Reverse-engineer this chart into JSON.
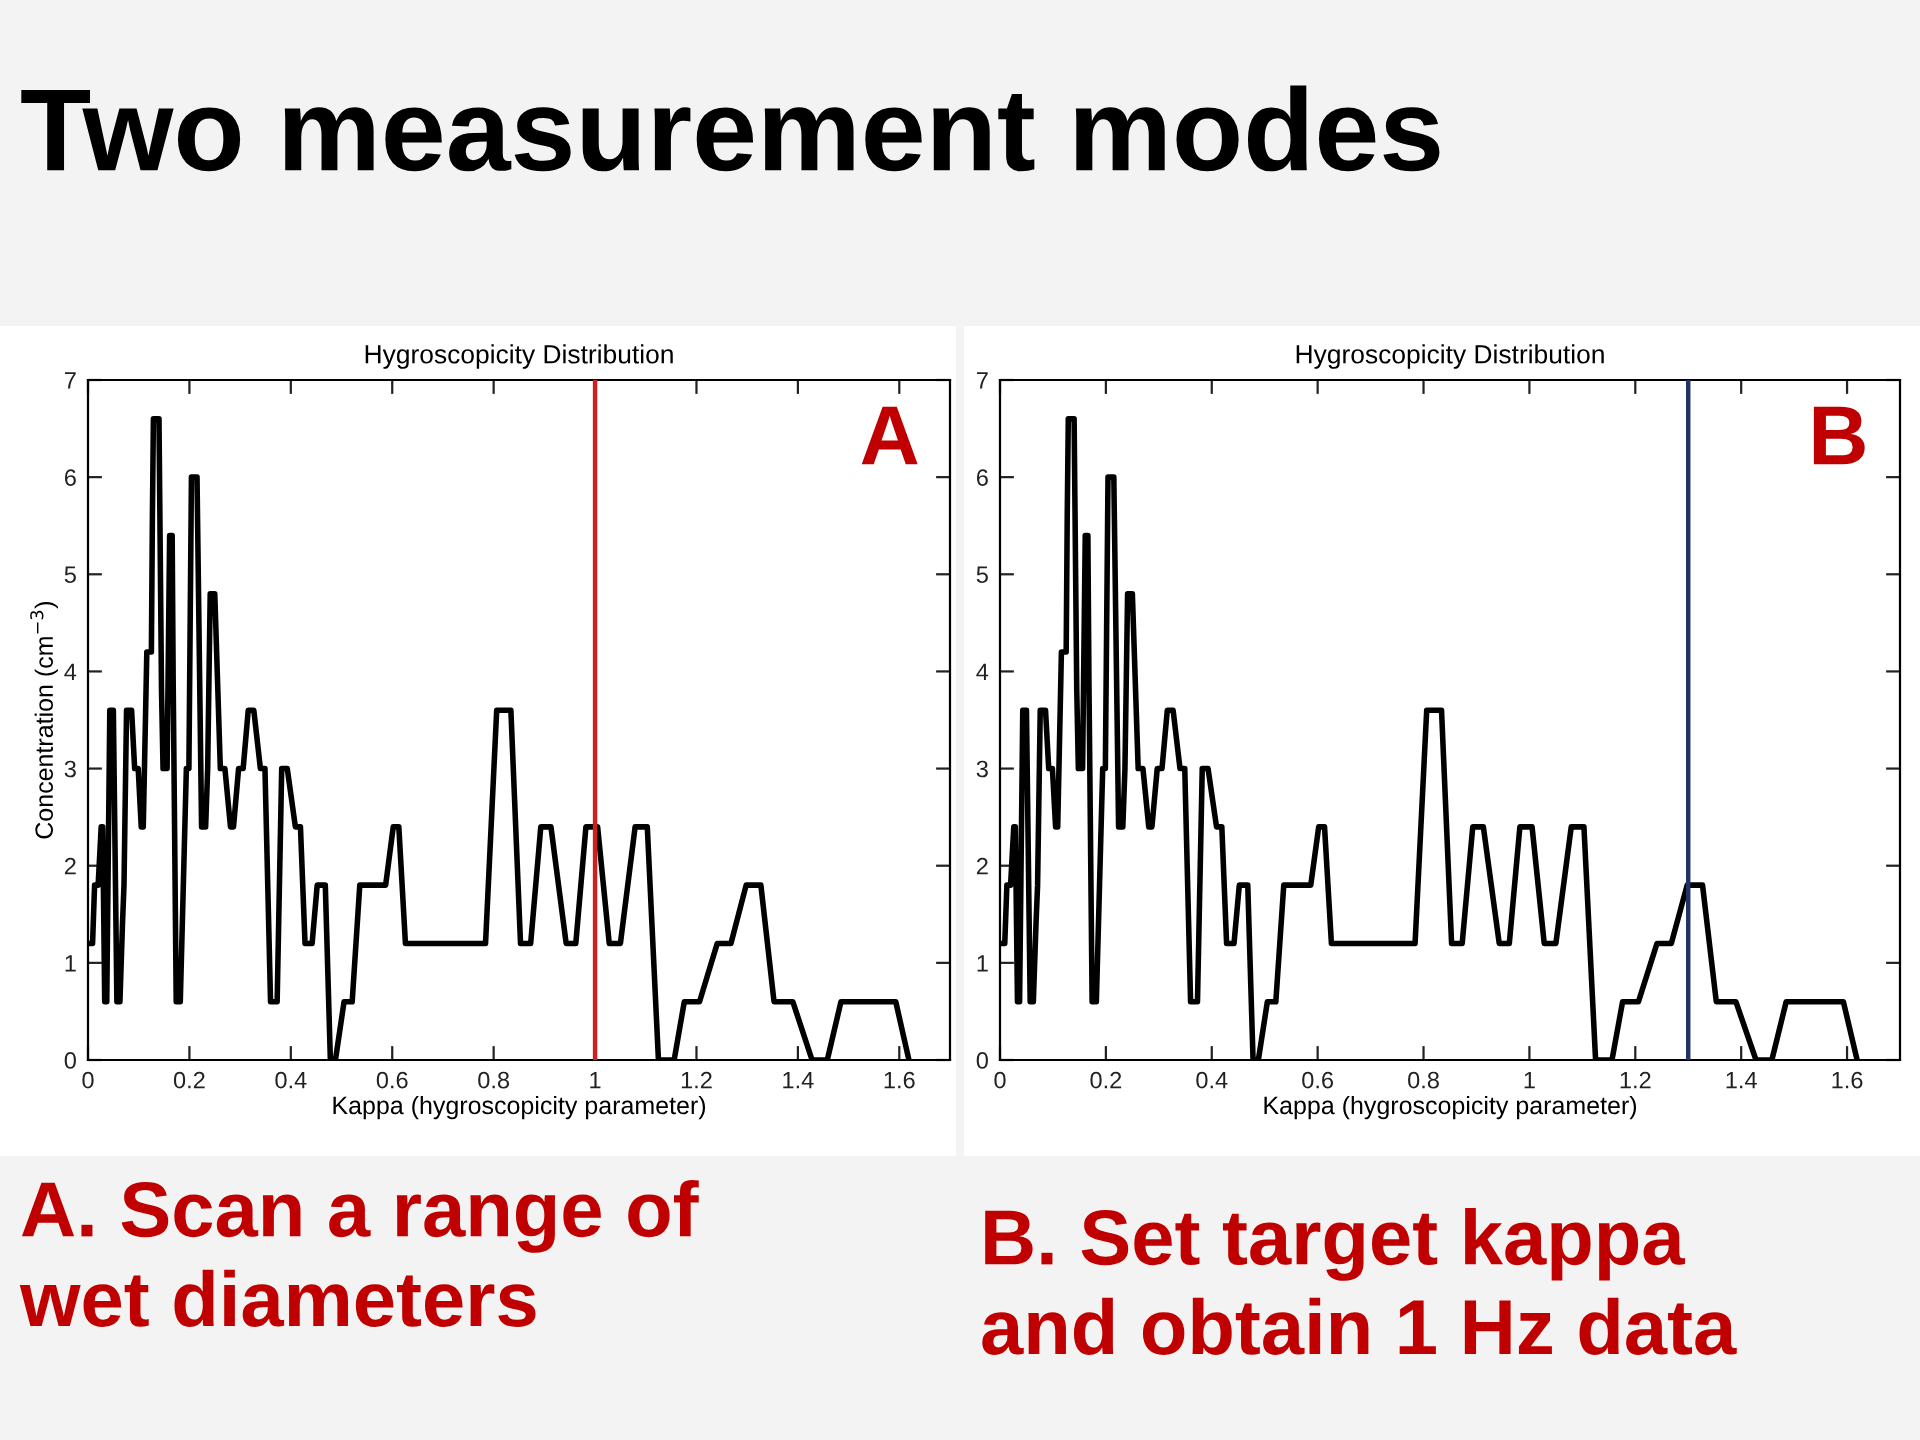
{
  "chart_data": [
    {
      "type": "line",
      "title": "Hygroscopicity Distribution",
      "xlabel": "Kappa (hygroscopicity parameter)",
      "ylabel": "Concentration (cm$^{−3}$)",
      "x": [
        0,
        0.009,
        0.013,
        0.02,
        0.026,
        0.029,
        0.033,
        0.037,
        0.043,
        0.05,
        0.057,
        0.063,
        0.068,
        0.071,
        0.076,
        0.086,
        0.092,
        0.099,
        0.105,
        0.109,
        0.116,
        0.125,
        0.127,
        0.129,
        0.14,
        0.145,
        0.148,
        0.156,
        0.161,
        0.166,
        0.168,
        0.174,
        0.182,
        0.188,
        0.194,
        0.199,
        0.204,
        0.215,
        0.224,
        0.232,
        0.236,
        0.241,
        0.25,
        0.261,
        0.27,
        0.281,
        0.287,
        0.297,
        0.306,
        0.316,
        0.327,
        0.34,
        0.349,
        0.36,
        0.373,
        0.382,
        0.393,
        0.409,
        0.419,
        0.428,
        0.442,
        0.452,
        0.468,
        0.478,
        0.488,
        0.505,
        0.521,
        0.536,
        0.587,
        0.602,
        0.613,
        0.626,
        0.784,
        0.806,
        0.834,
        0.853,
        0.873,
        0.893,
        0.913,
        0.943,
        0.962,
        0.982,
        1.005,
        1.028,
        1.05,
        1.079,
        1.103,
        1.125,
        1.156,
        1.176,
        1.206,
        1.241,
        1.268,
        1.298,
        1.327,
        1.353,
        1.39,
        1.428,
        1.458,
        1.485,
        1.593,
        1.619
      ],
      "series": [
        {
          "color": "#000000",
          "values": [
            1.2,
            1.2,
            1.8,
            1.8,
            2.4,
            2.4,
            0.6,
            0.6,
            3.6,
            3.6,
            0.6,
            0.6,
            1.4,
            1.8,
            3.6,
            3.6,
            3.0,
            3.0,
            2.4,
            2.4,
            4.2,
            4.2,
            5.6,
            6.6,
            6.6,
            3.8,
            3.0,
            3.0,
            5.4,
            5.4,
            3.9,
            0.6,
            0.6,
            1.8,
            3.0,
            3.0,
            6.0,
            6.0,
            2.4,
            2.4,
            3.0,
            4.8,
            4.8,
            3.0,
            3.0,
            2.4,
            2.4,
            3.0,
            3.0,
            3.6,
            3.6,
            3.0,
            3.0,
            0.6,
            0.6,
            3.0,
            3.0,
            2.4,
            2.4,
            1.2,
            1.2,
            1.8,
            1.8,
            0,
            0,
            0.6,
            0.6,
            1.8,
            1.8,
            2.4,
            2.4,
            1.2,
            1.2,
            3.6,
            3.6,
            1.2,
            1.2,
            2.4,
            2.4,
            1.2,
            1.2,
            2.4,
            2.4,
            1.2,
            1.2,
            2.4,
            2.4,
            0,
            0,
            0.6,
            0.6,
            1.2,
            1.2,
            1.8,
            1.8,
            0.6,
            0.6,
            0,
            0,
            0.6,
            0.6,
            0
          ]
        }
      ],
      "xlim": [
        0,
        1.7
      ],
      "xticks": [
        0,
        0.2,
        0.4,
        0.6,
        0.8,
        1,
        1.2,
        1.4,
        1.6
      ],
      "ylim": [
        0,
        7
      ],
      "yticks": [
        0,
        1,
        2,
        3,
        4,
        5,
        6,
        7
      ],
      "marker": "none",
      "line_style": "solid",
      "ref_lines": [
        {
          "axis": "x",
          "value": 1,
          "color": "#cc2020"
        }
      ],
      "annotations": [
        "Two measurement modes",
        "A",
        "A. Scan a range of wet diameters"
      ]
    },
    {
      "type": "line",
      "title": "Hygroscopicity Distribution",
      "xlabel": "Kappa (hygroscopicity parameter)",
      "x": [
        0,
        0.009,
        0.013,
        0.02,
        0.026,
        0.029,
        0.033,
        0.037,
        0.043,
        0.05,
        0.057,
        0.063,
        0.068,
        0.071,
        0.076,
        0.086,
        0.092,
        0.099,
        0.105,
        0.109,
        0.116,
        0.125,
        0.127,
        0.129,
        0.14,
        0.145,
        0.148,
        0.156,
        0.161,
        0.166,
        0.168,
        0.174,
        0.182,
        0.188,
        0.194,
        0.199,
        0.204,
        0.215,
        0.224,
        0.232,
        0.236,
        0.241,
        0.25,
        0.261,
        0.27,
        0.281,
        0.287,
        0.297,
        0.306,
        0.316,
        0.327,
        0.34,
        0.349,
        0.36,
        0.373,
        0.382,
        0.393,
        0.409,
        0.419,
        0.428,
        0.442,
        0.452,
        0.468,
        0.478,
        0.488,
        0.505,
        0.521,
        0.536,
        0.587,
        0.602,
        0.613,
        0.626,
        0.784,
        0.806,
        0.834,
        0.853,
        0.873,
        0.893,
        0.913,
        0.943,
        0.962,
        0.982,
        1.005,
        1.028,
        1.05,
        1.079,
        1.103,
        1.125,
        1.156,
        1.176,
        1.206,
        1.241,
        1.268,
        1.298,
        1.327,
        1.353,
        1.39,
        1.428,
        1.458,
        1.485,
        1.593,
        1.619
      ],
      "series": [
        {
          "color": "#000000",
          "values": [
            1.2,
            1.2,
            1.8,
            1.8,
            2.4,
            2.4,
            0.6,
            0.6,
            3.6,
            3.6,
            0.6,
            0.6,
            1.4,
            1.8,
            3.6,
            3.6,
            3.0,
            3.0,
            2.4,
            2.4,
            4.2,
            4.2,
            5.6,
            6.6,
            6.6,
            3.8,
            3.0,
            3.0,
            5.4,
            5.4,
            3.9,
            0.6,
            0.6,
            1.8,
            3.0,
            3.0,
            6.0,
            6.0,
            2.4,
            2.4,
            3.0,
            4.8,
            4.8,
            3.0,
            3.0,
            2.4,
            2.4,
            3.0,
            3.0,
            3.6,
            3.6,
            3.0,
            3.0,
            0.6,
            0.6,
            3.0,
            3.0,
            2.4,
            2.4,
            1.2,
            1.2,
            1.8,
            1.8,
            0,
            0,
            0.6,
            0.6,
            1.8,
            1.8,
            2.4,
            2.4,
            1.2,
            1.2,
            3.6,
            3.6,
            1.2,
            1.2,
            2.4,
            2.4,
            1.2,
            1.2,
            2.4,
            2.4,
            1.2,
            1.2,
            2.4,
            2.4,
            0,
            0,
            0.6,
            0.6,
            1.2,
            1.2,
            1.8,
            1.8,
            0.6,
            0.6,
            0,
            0,
            0.6,
            0.6,
            0
          ]
        }
      ],
      "xlim": [
        0,
        1.7
      ],
      "xticks": [
        0,
        0.2,
        0.4,
        0.6,
        0.8,
        1,
        1.2,
        1.4,
        1.6
      ],
      "ylim": [
        0,
        7
      ],
      "yticks": [
        0,
        1,
        2,
        3,
        4,
        5,
        6,
        7
      ],
      "marker": "none",
      "line_style": "solid",
      "ref_lines": [
        {
          "axis": "x",
          "value": 1.3,
          "color": "#1f3368"
        }
      ],
      "annotations": [
        "B",
        "B. Set target kappa and obtain 1 Hz data"
      ]
    }
  ]
}
